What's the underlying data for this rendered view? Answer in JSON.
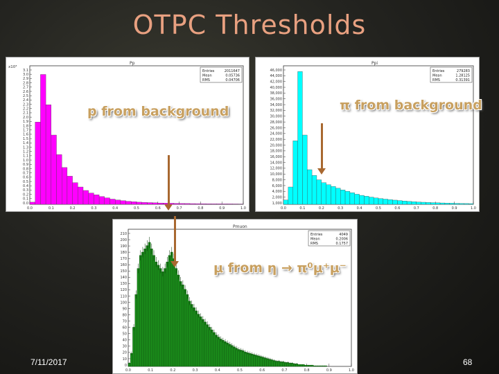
{
  "slide": {
    "title": "OTPC Thresholds",
    "date": "7/11/2017",
    "page_number": "68"
  },
  "chart_data": [
    {
      "type": "bar",
      "panel": "proton",
      "color": "#ff00ff",
      "callout": "p from background",
      "panel_title": "Pp",
      "stats": [
        {
          "label": "Entries",
          "value": "2011647"
        },
        {
          "label": "Mean",
          "value": "0.05736"
        },
        {
          "label": "RMS",
          "value": "0.04706"
        }
      ],
      "y_scale_label": "x10³",
      "xlim": [
        0.0,
        1.0
      ],
      "ylim": [
        0,
        3.2
      ],
      "yticks": [
        "0.0",
        "0.1",
        "0.2",
        "0.3",
        "0.4",
        "0.5",
        "0.6",
        "0.7",
        "0.8",
        "0.9",
        "1.0",
        "1.1",
        "1.2",
        "1.3",
        "1.4",
        "1.5",
        "1.6",
        "1.7",
        "1.8",
        "1.9",
        "2.0",
        "2.1",
        "2.2",
        "2.3",
        "2.4",
        "2.5",
        "2.6",
        "2.7",
        "2.8",
        "2.9",
        "3.0",
        "3.1"
      ],
      "xticks": [
        "0.0",
        "0.1",
        "0.2",
        "0.3",
        "0.4",
        "0.5",
        "0.6",
        "0.7",
        "0.8",
        "0.9",
        "1.0"
      ],
      "bin_start": 0.0,
      "bin_width": 0.025,
      "values": [
        0.05,
        1.9,
        3.0,
        2.3,
        1.6,
        1.15,
        0.85,
        0.65,
        0.5,
        0.4,
        0.32,
        0.26,
        0.22,
        0.18,
        0.15,
        0.12,
        0.1,
        0.085,
        0.07,
        0.06,
        0.05,
        0.045,
        0.04,
        0.035,
        0.03,
        0.028,
        0.025,
        0.022,
        0.02,
        0.018,
        0.016,
        0.015,
        0.014,
        0.013,
        0.012,
        0.011,
        0.01,
        0.01,
        0.009,
        0.008
      ],
      "marker_x": 0.675
    },
    {
      "type": "bar",
      "panel": "pion",
      "color": "#00ffff",
      "callout": "π from background",
      "panel_title": "Ppi",
      "stats": [
        {
          "label": "Entries",
          "value": "279283"
        },
        {
          "label": "Mean",
          "value": "1.28125"
        },
        {
          "label": "RMS",
          "value": "0.31391"
        }
      ],
      "y_scale_label": "",
      "xlim": [
        0.0,
        1.0
      ],
      "ylim": [
        0,
        48000
      ],
      "yticks": [
        "1,000",
        "2,000",
        "4,000",
        "6,000",
        "8,000",
        "10,000",
        "12,000",
        "14,000",
        "16,000",
        "18,000",
        "20,000",
        "22,000",
        "24,000",
        "26,000",
        "28,000",
        "30,000",
        "32,000",
        "34,000",
        "36,000",
        "38,000",
        "40,000",
        "42,000",
        "44,000",
        "46,000"
      ],
      "xticks": [
        "0.0",
        "0.1",
        "0.2",
        "0.3",
        "0.4",
        "0.5",
        "0.6",
        "0.7",
        "0.8",
        "0.9",
        "1.0"
      ],
      "bin_start": 0.0,
      "bin_width": 0.025,
      "values": [
        1500,
        6000,
        22000,
        46000,
        24000,
        12000,
        10000,
        8500,
        7500,
        6800,
        6200,
        5600,
        5000,
        4500,
        4000,
        3500,
        3100,
        2800,
        2500,
        2200,
        2000,
        1800,
        1600,
        1450,
        1300,
        1150,
        1000,
        900,
        800,
        720,
        650,
        580,
        520,
        470,
        420,
        380,
        340,
        300,
        270,
        240
      ],
      "marker_x": 0.17
    },
    {
      "type": "bar",
      "panel": "muon",
      "color": "#1a8a1a",
      "callout": "μ from η → π⁰μ⁺μ⁻",
      "panel_title": "Pmuon",
      "stats": [
        {
          "label": "Entries",
          "value": "4049"
        },
        {
          "label": "Mean",
          "value": "0.2006"
        },
        {
          "label": "RMS",
          "value": "0.1757"
        }
      ],
      "y_scale_label": "",
      "xlim": [
        0.0,
        1.0
      ],
      "ylim": [
        0,
        210
      ],
      "yticks": [
        "0",
        "10",
        "20",
        "30",
        "40",
        "50",
        "60",
        "70",
        "80",
        "90",
        "100",
        "110",
        "120",
        "130",
        "140",
        "150",
        "160",
        "170",
        "180",
        "190",
        "200",
        "210"
      ],
      "xticks": [
        "0.0",
        "0.1",
        "0.2",
        "0.3",
        "0.4",
        "0.5",
        "0.6",
        "0.7",
        "0.8",
        "0.9",
        "1.0"
      ],
      "bin_start": 0.0,
      "bin_width": 0.01,
      "values": [
        5,
        20,
        60,
        110,
        150,
        170,
        175,
        180,
        185,
        190,
        180,
        170,
        160,
        155,
        150,
        145,
        150,
        160,
        170,
        175,
        165,
        150,
        140,
        130,
        125,
        118,
        110,
        100,
        95,
        90,
        85,
        80,
        76,
        72,
        68,
        64,
        60,
        56,
        52,
        48,
        45,
        42,
        40,
        38,
        36,
        34,
        32,
        30,
        28,
        26,
        25,
        24,
        22,
        21,
        20,
        19,
        18,
        17,
        16,
        15,
        14,
        13,
        12,
        11,
        10,
        9,
        8,
        8,
        7,
        7,
        6,
        6,
        5,
        5,
        4,
        4,
        3,
        3,
        3,
        2,
        2,
        2,
        2,
        1,
        1,
        1,
        1,
        1,
        1,
        0
      ],
      "marker_x": 0.14
    }
  ]
}
